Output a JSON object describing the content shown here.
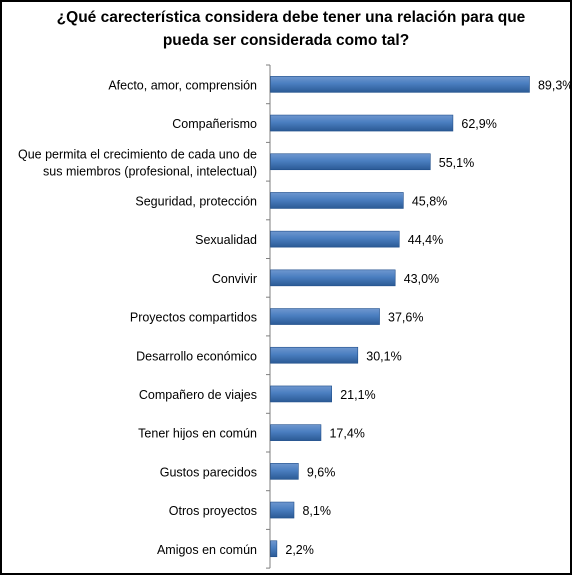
{
  "chart_data": {
    "type": "bar",
    "orientation": "horizontal",
    "title": "¿Qué carecterística considera debe tener una relación para que pueda ser considerada como tal?",
    "title_lines": [
      "¿Qué carecterística considera debe tener una relación para que",
      "pueda ser considerada como tal?"
    ],
    "categories": [
      "Afecto, amor, comprensión",
      "Compañerismo",
      "Que permita el crecimiento de cada uno de sus miembros (profesional, intelectual)",
      "Seguridad, protección",
      "Sexualidad",
      "Convivir",
      "Proyectos compartidos",
      "Desarrollo económico",
      "Compañero de viajes",
      "Tener hijos en común",
      "Gustos parecidos",
      "Otros proyectos",
      "Amigos en común"
    ],
    "category_lines": [
      [
        "Afecto, amor, comprensión"
      ],
      [
        "Compañerismo"
      ],
      [
        "Que permita el crecimiento de cada uno de",
        "sus miembros (profesional, intelectual)"
      ],
      [
        "Seguridad, protección"
      ],
      [
        "Sexualidad"
      ],
      [
        "Convivir"
      ],
      [
        "Proyectos compartidos"
      ],
      [
        "Desarrollo económico"
      ],
      [
        "Compañero de viajes"
      ],
      [
        "Tener hijos en común"
      ],
      [
        "Gustos parecidos"
      ],
      [
        "Otros proyectos"
      ],
      [
        "Amigos en común"
      ]
    ],
    "values": [
      89.3,
      62.9,
      55.1,
      45.8,
      44.4,
      43.0,
      37.6,
      30.1,
      21.1,
      17.4,
      9.6,
      8.1,
      2.2
    ],
    "value_labels": [
      "89,3%",
      "62,9%",
      "55,1%",
      "45,8%",
      "44,4%",
      "43,0%",
      "37,6%",
      "30,1%",
      "21,1%",
      "17,4%",
      "9,6%",
      "8,1%",
      "2,2%"
    ],
    "xlim": [
      0,
      100
    ],
    "grid": false,
    "legend": "none",
    "colors": {
      "bar_top": "#6f97cf",
      "bar_mid": "#4a7ec0",
      "bar_bottom": "#2b5a95",
      "bar_edge": "#1f4e8a",
      "axis": "#7f7f7f"
    }
  }
}
